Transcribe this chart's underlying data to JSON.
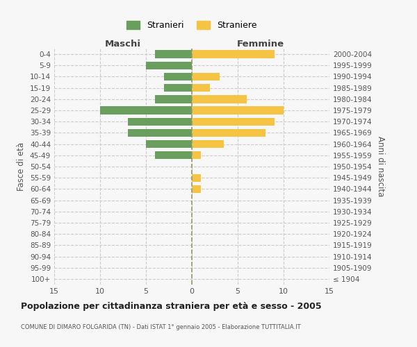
{
  "age_groups": [
    "100+",
    "95-99",
    "90-94",
    "85-89",
    "80-84",
    "75-79",
    "70-74",
    "65-69",
    "60-64",
    "55-59",
    "50-54",
    "45-49",
    "40-44",
    "35-39",
    "30-34",
    "25-29",
    "20-24",
    "15-19",
    "10-14",
    "5-9",
    "0-4"
  ],
  "birth_years": [
    "≤ 1904",
    "1905-1909",
    "1910-1914",
    "1915-1919",
    "1920-1924",
    "1925-1929",
    "1930-1934",
    "1935-1939",
    "1940-1944",
    "1945-1949",
    "1950-1954",
    "1955-1959",
    "1960-1964",
    "1965-1969",
    "1970-1974",
    "1975-1979",
    "1980-1984",
    "1985-1989",
    "1990-1994",
    "1995-1999",
    "2000-2004"
  ],
  "maschi": [
    0,
    0,
    0,
    0,
    0,
    0,
    0,
    0,
    0,
    0,
    0,
    4,
    5,
    7,
    7,
    10,
    4,
    3,
    3,
    5,
    4
  ],
  "femmine": [
    0,
    0,
    0,
    0,
    0,
    0,
    0,
    0,
    1,
    1,
    0,
    1,
    3.5,
    8,
    9,
    10,
    6,
    2,
    3,
    0,
    9
  ],
  "male_color": "#6a9e5f",
  "female_color": "#f5c444",
  "background_color": "#f7f7f7",
  "grid_color": "#cccccc",
  "title": "Popolazione per cittadinanza straniera per età e sesso - 2005",
  "subtitle": "COMUNE DI DIMARO FOLGARIDA (TN) - Dati ISTAT 1° gennaio 2005 - Elaborazione TUTTITALIA.IT",
  "xlabel_left": "Maschi",
  "xlabel_right": "Femmine",
  "ylabel_left": "Fasce di età",
  "ylabel_right": "Anni di nascita",
  "legend_male": "Stranieri",
  "legend_female": "Straniere",
  "xlim": 15
}
